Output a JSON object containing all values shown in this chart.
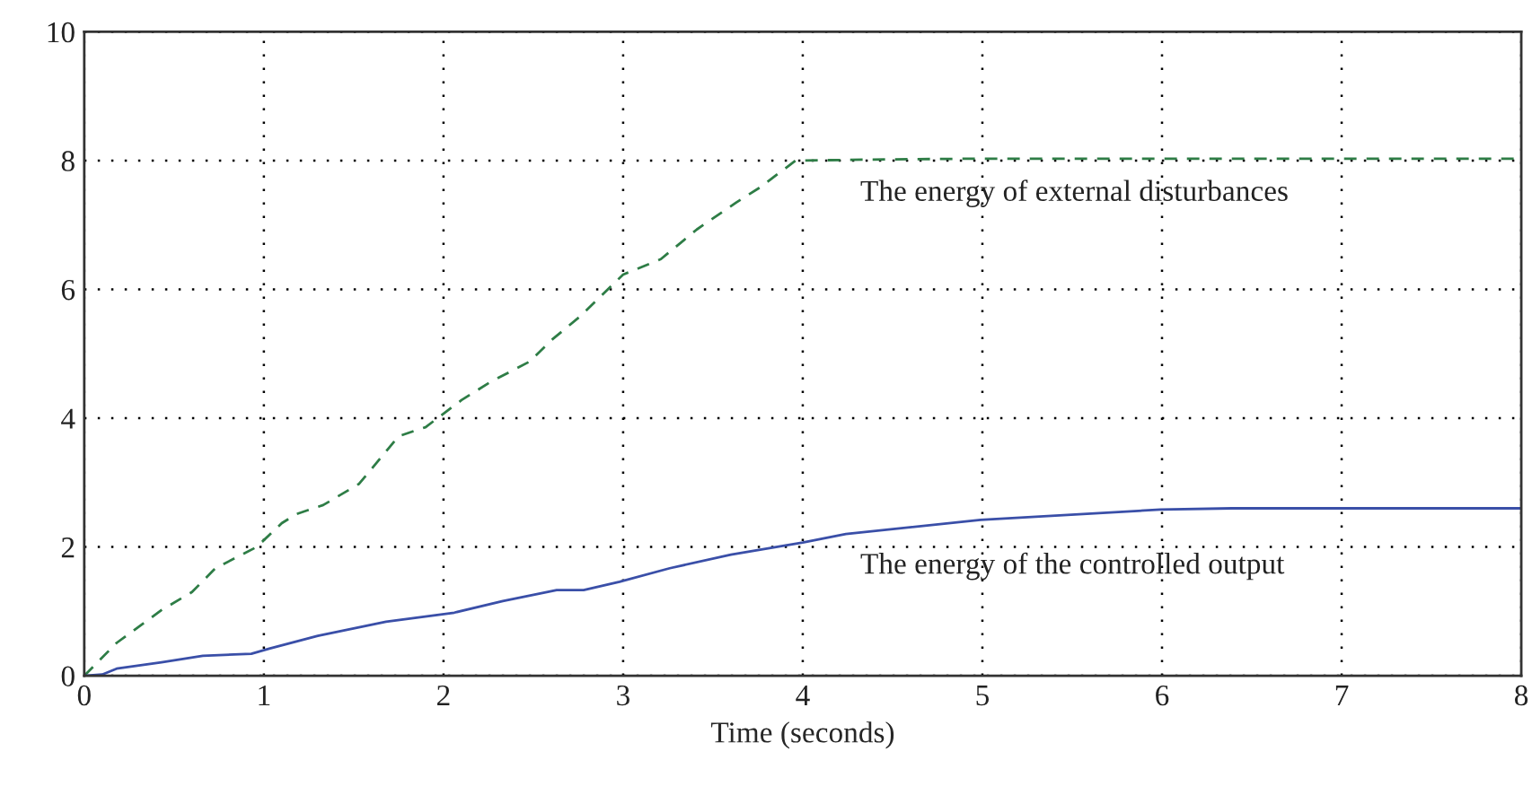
{
  "chart_data": {
    "type": "line",
    "xlabel": "Time (seconds)",
    "xlim": [
      0,
      8
    ],
    "xticks": [
      0,
      1,
      2,
      3,
      4,
      5,
      6,
      7,
      8
    ],
    "ylim": [
      0,
      10
    ],
    "yticks": [
      0,
      2,
      4,
      6,
      8,
      10
    ],
    "grid": true,
    "series": [
      {
        "name": "The energy of external disturbances",
        "color": "#2e7d46",
        "line_style": "dashed",
        "x": [
          0,
          0.18,
          0.43,
          0.6,
          0.73,
          0.96,
          1.1,
          1.18,
          1.33,
          1.53,
          1.75,
          1.9,
          2.1,
          2.26,
          2.48,
          2.6,
          2.76,
          3.0,
          3.21,
          3.41,
          3.63,
          3.76,
          3.96,
          4.5,
          5,
          6,
          7,
          8
        ],
        "values": [
          0,
          0.51,
          1.02,
          1.3,
          1.67,
          2.0,
          2.37,
          2.51,
          2.65,
          2.98,
          3.72,
          3.86,
          4.28,
          4.56,
          4.88,
          5.21,
          5.58,
          6.23,
          6.47,
          6.93,
          7.35,
          7.58,
          8.0,
          8.02,
          8.03,
          8.03,
          8.03,
          8.03
        ]
      },
      {
        "name": "The energy of the controlled output",
        "color": "#3a4fa8",
        "line_style": "solid",
        "x": [
          0,
          0.1,
          0.18,
          0.43,
          0.66,
          0.93,
          1.03,
          1.3,
          1.68,
          2.06,
          2.33,
          2.63,
          2.78,
          2.98,
          3.26,
          3.6,
          4.0,
          4.24,
          4.99,
          5.99,
          6.39,
          8
        ],
        "values": [
          0,
          0.02,
          0.11,
          0.21,
          0.31,
          0.34,
          0.42,
          0.62,
          0.84,
          0.98,
          1.16,
          1.33,
          1.33,
          1.46,
          1.67,
          1.88,
          2.07,
          2.2,
          2.42,
          2.58,
          2.6,
          2.6
        ]
      }
    ]
  }
}
